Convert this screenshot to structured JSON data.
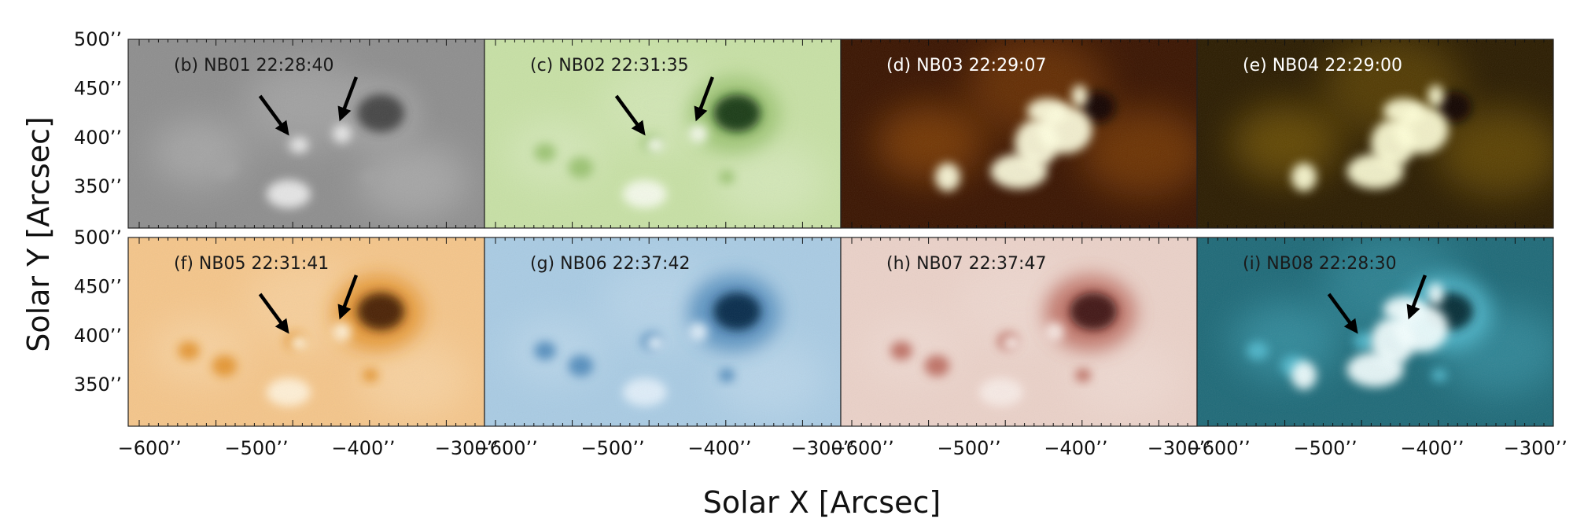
{
  "figure": {
    "x_axis_title": "Solar X [Arcsec]",
    "y_axis_title": "Solar Y [Arcsec]",
    "x_tick_labels": [
      "−600’’",
      "−500’’",
      "−400’’",
      "−300’’"
    ],
    "y_tick_labels": [
      "500’’",
      "450’’",
      "400’’",
      "350’’"
    ]
  },
  "panels": [
    {
      "label": "(b) NB01 22:28:40",
      "filter": "NB01",
      "time": "22:28:40",
      "colormap": "gray",
      "label_color": "#1a1a1a",
      "arrows": 2
    },
    {
      "label": "(c) NB02 22:31:35",
      "filter": "NB02",
      "time": "22:31:35",
      "colormap": "green",
      "label_color": "#1a1a1a",
      "arrows": 2
    },
    {
      "label": "(d) NB03 22:29:07",
      "filter": "NB03",
      "time": "22:29:07",
      "colormap": "dark-orange",
      "label_color": "#ffffff",
      "arrows": 0
    },
    {
      "label": "(e) NB04 22:29:00",
      "filter": "NB04",
      "time": "22:29:00",
      "colormap": "dark-gold",
      "label_color": "#ffffff",
      "arrows": 0
    },
    {
      "label": "(f) NB05 22:31:41",
      "filter": "NB05",
      "time": "22:31:41",
      "colormap": "orange",
      "label_color": "#1a1a1a",
      "arrows": 2
    },
    {
      "label": "(g) NB06 22:37:42",
      "filter": "NB06",
      "time": "22:37:42",
      "colormap": "blue",
      "label_color": "#1a1a1a",
      "arrows": 0
    },
    {
      "label": "(h) NB07 22:37:47",
      "filter": "NB07",
      "time": "22:37:47",
      "colormap": "red",
      "label_color": "#1a1a1a",
      "arrows": 0
    },
    {
      "label": "(i) NB08 22:28:30",
      "filter": "NB08",
      "time": "22:28:30",
      "colormap": "teal",
      "label_color": "#1a1a1a",
      "arrows": 2
    }
  ]
}
